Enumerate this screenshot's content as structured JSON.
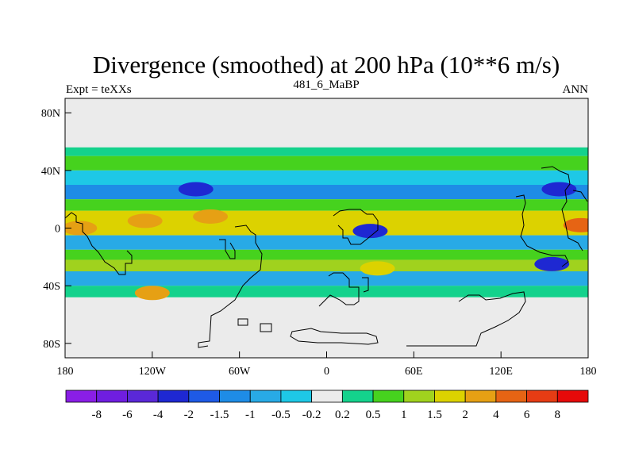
{
  "chart_data": {
    "type": "heatmap",
    "title": "Divergence (smoothed) at 200 hPa (10**6 m/s)",
    "subtitle_left": "Expt = teXXs",
    "subtitle_center": "481_6_MaBP",
    "subtitle_right": "ANN",
    "x_ticks": [
      "180",
      "120W",
      "60W",
      "0",
      "60E",
      "120E",
      "180"
    ],
    "x_tick_values": [
      -180,
      -120,
      -60,
      0,
      60,
      120,
      180
    ],
    "y_ticks": [
      "80N",
      "40N",
      "0",
      "40S",
      "80S"
    ],
    "y_tick_values": [
      80,
      40,
      0,
      -40,
      -80
    ],
    "xlim": [
      -180,
      180
    ],
    "ylim": [
      -90,
      90
    ],
    "levels": [
      "-8",
      "-6",
      "-4",
      "-2",
      "-1.5",
      "-1",
      "-0.5",
      "-0.2",
      "0.2",
      "0.5",
      "1",
      "1.5",
      "2",
      "4",
      "6",
      "8"
    ],
    "level_colors": [
      "#8a1ee6",
      "#6f1ee0",
      "#5a28d8",
      "#1e28d2",
      "#1e5ae6",
      "#1e8ce6",
      "#28aae6",
      "#1ec8e6",
      "#ebebeb",
      "#14d28c",
      "#46d21e",
      "#a0d21e",
      "#dcd200",
      "#e6a014",
      "#e66414",
      "#e63c14",
      "#e60a0a"
    ],
    "background_value_range": [
      -0.2,
      0.2
    ],
    "zonal_bands": [
      {
        "lat_range": [
          50,
          56
        ],
        "value": 0.35
      },
      {
        "lat_range": [
          40,
          50
        ],
        "value": 0.8
      },
      {
        "lat_range": [
          30,
          40
        ],
        "value": -0.4
      },
      {
        "lat_range": [
          20,
          30
        ],
        "value": -1.2
      },
      {
        "lat_range": [
          12,
          20
        ],
        "value": 0.5
      },
      {
        "lat_range": [
          -5,
          12
        ],
        "value": 1.8
      },
      {
        "lat_range": [
          -15,
          -5
        ],
        "value": -0.7
      },
      {
        "lat_range": [
          -22,
          -15
        ],
        "value": 0.8
      },
      {
        "lat_range": [
          -30,
          -22
        ],
        "value": 1.1
      },
      {
        "lat_range": [
          -40,
          -30
        ],
        "value": -0.8
      },
      {
        "lat_range": [
          -48,
          -40
        ],
        "value": 0.4
      }
    ],
    "features": [
      {
        "lon": 175,
        "lat": 2,
        "value": 5
      },
      {
        "lon": -170,
        "lat": 0,
        "value": 3
      },
      {
        "lon": -125,
        "lat": 5,
        "value": 2.5
      },
      {
        "lon": -80,
        "lat": 8,
        "value": 2.2
      },
      {
        "lon": 30,
        "lat": -2,
        "value": -3
      },
      {
        "lon": -90,
        "lat": 27,
        "value": -3
      },
      {
        "lon": 155,
        "lat": -25,
        "value": -2.5
      },
      {
        "lon": 160,
        "lat": 27,
        "value": -2.8
      },
      {
        "lon": 35,
        "lat": -28,
        "value": 1.8
      },
      {
        "lon": -120,
        "lat": -45,
        "value": 2
      }
    ]
  }
}
